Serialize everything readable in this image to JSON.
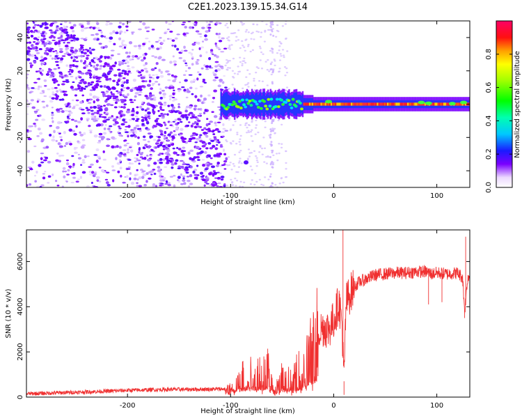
{
  "title": "C2E1.2023.139.15.34.G14",
  "colors": {
    "snr_line": "#f03030",
    "spectrogram_low": "#7a00ff",
    "spectrogram_high": "#ff0000"
  },
  "chart_data": [
    {
      "type": "heatmap",
      "xlabel": "Height of straight line (km)",
      "ylabel": "Frequency (Hz)",
      "xlim": [
        -298,
        132
      ],
      "ylim": [
        -50,
        50
      ],
      "x_ticks": [
        -200,
        -100,
        0,
        100
      ],
      "y_ticks": [
        -40,
        -20,
        0,
        20,
        40
      ],
      "colorbar": {
        "label": "Normalized spectral amplitude",
        "range": [
          0.0,
          1.0
        ],
        "ticks": [
          "0.0",
          "0.2",
          "0.4",
          "0.6",
          "0.8"
        ],
        "colormap": "rainbow"
      },
      "features": {
        "noise_region_x": [
          -298,
          -108
        ],
        "noise_drift_slope_hz_per_km": 0.42,
        "signal_band_x": [
          -110,
          132
        ],
        "signal_frequency_hz": 0
      },
      "grid": false
    },
    {
      "type": "line",
      "xlabel": "Height of straight line (km)",
      "ylabel": "SNR (10 * v/v)",
      "xlim": [
        -298,
        132
      ],
      "ylim": [
        0,
        7400
      ],
      "x_ticks": [
        -200,
        -100,
        0,
        100
      ],
      "y_ticks": [
        0,
        2000,
        4000,
        6000
      ],
      "series": [
        {
          "x": [
            -298,
            -280,
            -260,
            -240,
            -220,
            -200,
            -180,
            -160,
            -140,
            -120,
            -105,
            -100,
            -95,
            -90,
            -85,
            -80,
            -75,
            -70,
            -65,
            -60,
            -55,
            -50,
            -45,
            -40,
            -35,
            -30,
            -25,
            -20,
            -15,
            -10,
            -5,
            0,
            5,
            8,
            10,
            12,
            15,
            20,
            25,
            30,
            35,
            40,
            50,
            60,
            70,
            80,
            90,
            95,
            100,
            110,
            120,
            125,
            127,
            130,
            132
          ],
          "values": [
            150,
            170,
            200,
            230,
            260,
            300,
            320,
            340,
            340,
            350,
            360,
            380,
            550,
            800,
            1000,
            1100,
            900,
            1200,
            1300,
            600,
            500,
            900,
            800,
            600,
            1100,
            1000,
            1700,
            2100,
            2900,
            3100,
            3000,
            3400,
            4200,
            3300,
            700,
            4200,
            4500,
            4900,
            5100,
            5200,
            5300,
            5400,
            5450,
            5500,
            5500,
            5550,
            5550,
            5450,
            5500,
            5450,
            5500,
            5300,
            3800,
            5300,
            5350
          ],
          "spikes": [
            {
              "x": 9,
              "y": 7400
            },
            {
              "x": 10,
              "y": 100
            },
            {
              "x": 127,
              "y": 3500
            },
            {
              "x": 128,
              "y": 7100
            },
            {
              "x": 92,
              "y": 4100
            },
            {
              "x": 105,
              "y": 4200
            }
          ]
        }
      ],
      "grid": false
    }
  ]
}
